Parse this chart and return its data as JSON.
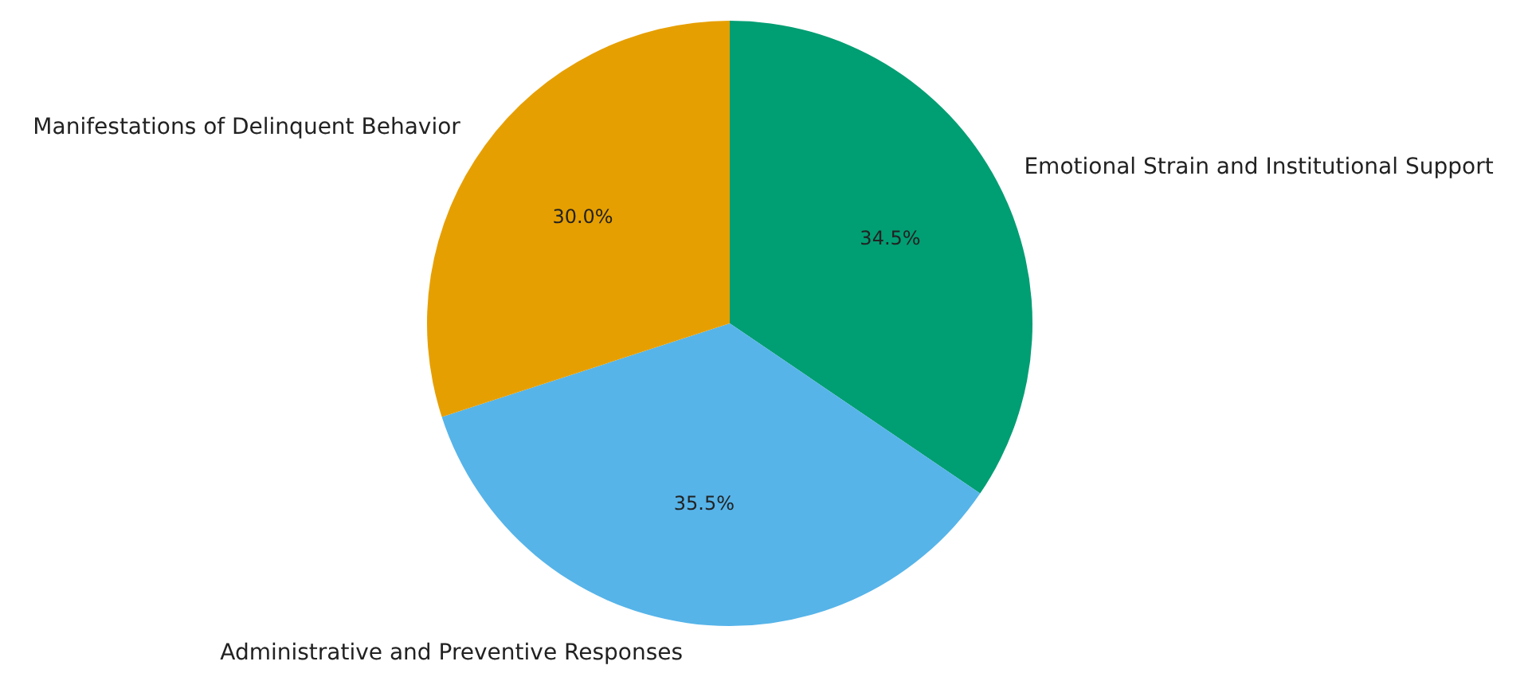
{
  "chart_data": {
    "type": "pie",
    "categories": [
      "Emotional Strain and Institutional Support",
      "Administrative and Preventive Responses",
      "Manifestations of Delinquent Behavior"
    ],
    "values": [
      34.5,
      35.5,
      30.0
    ],
    "colors": [
      "#009e73",
      "#56b4e9",
      "#e69f00"
    ],
    "value_labels": [
      "34.5%",
      "35.5%",
      "30.0%"
    ]
  }
}
